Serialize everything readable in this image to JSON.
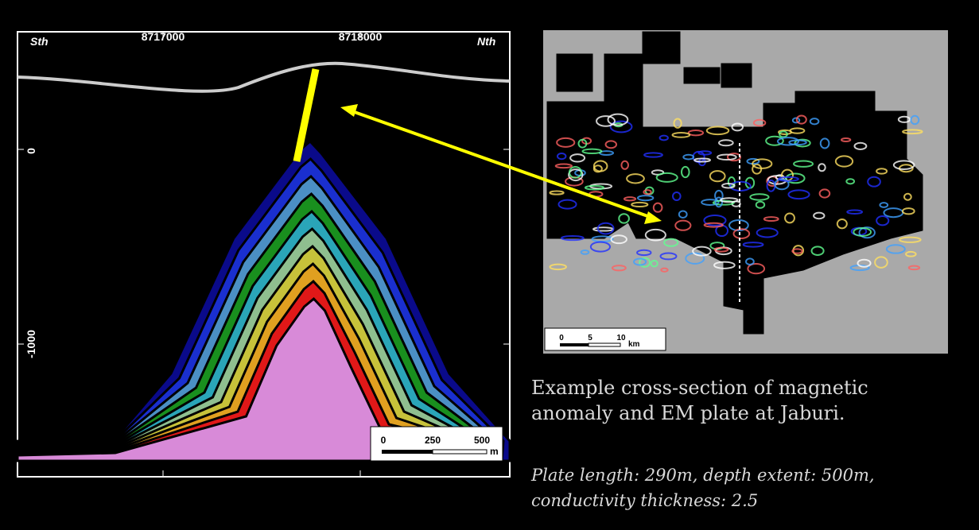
{
  "section": {
    "left_label": "Sth",
    "right_label": "Nth",
    "x_labels": [
      "8717000",
      "8718000"
    ],
    "y_labels": [
      "0",
      "-1000"
    ],
    "scale": {
      "labels": [
        "0",
        "250",
        "500"
      ],
      "unit": "m"
    }
  },
  "map": {
    "scale": {
      "labels": [
        "0",
        "5",
        "10"
      ],
      "unit": "km"
    }
  },
  "caption": {
    "text": "Example cross-section of magnetic anomaly and EM plate at Jaburi.",
    "detail": "Plate length: 290m, depth extent: 500m, conductivity thickness: 2.5"
  }
}
